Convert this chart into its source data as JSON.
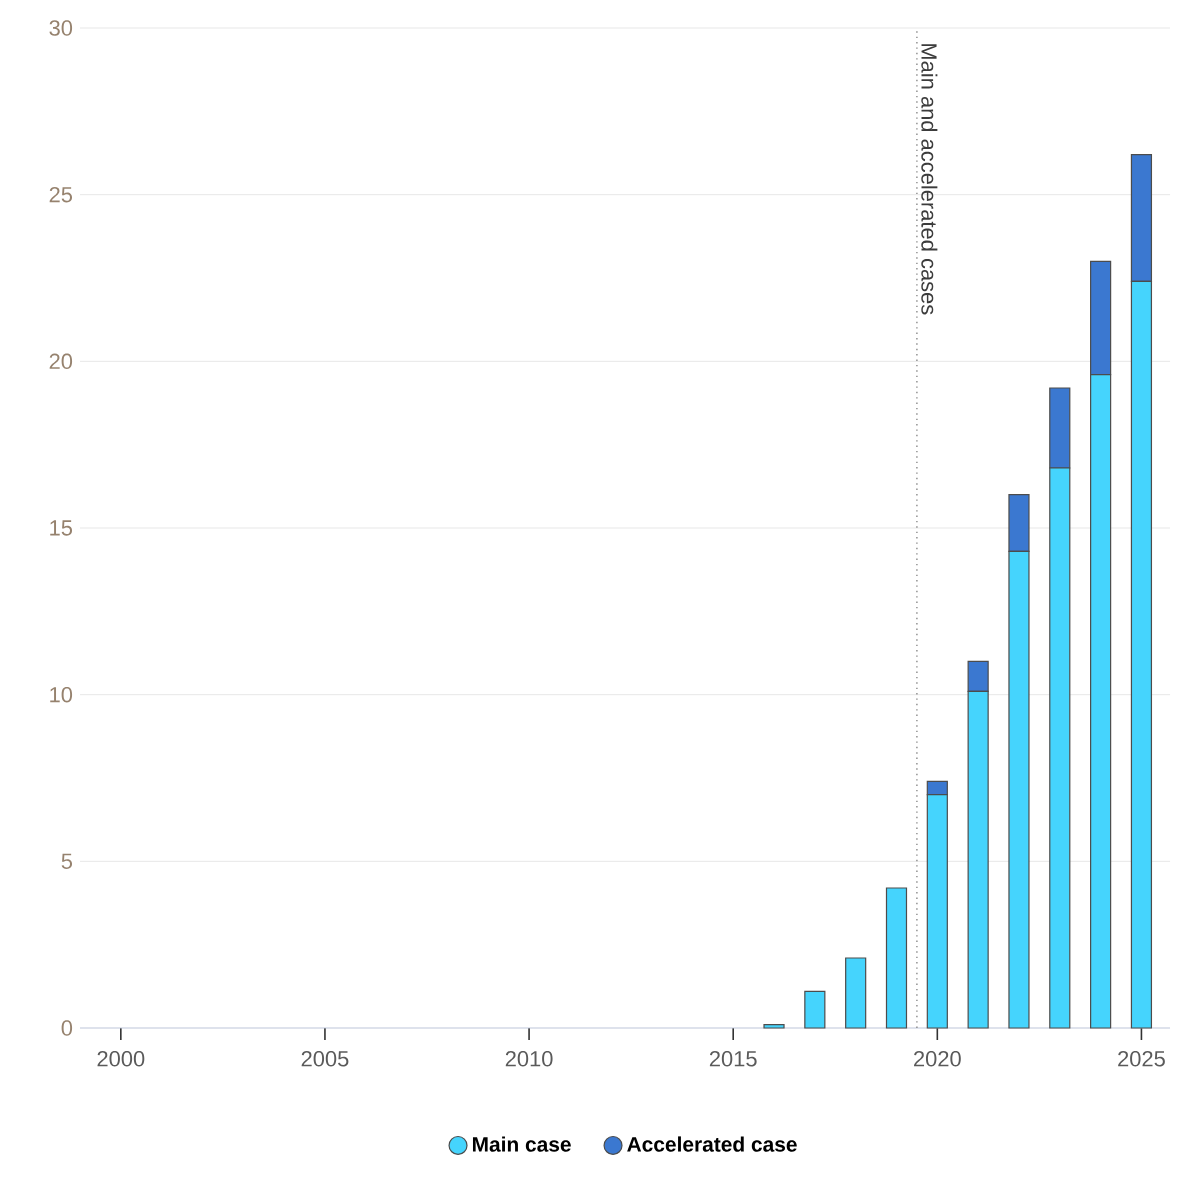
{
  "chart_data": {
    "type": "bar",
    "stacked": true,
    "x": [
      2016,
      2017,
      2018,
      2019,
      2020,
      2021,
      2022,
      2023,
      2024,
      2025
    ],
    "series": [
      {
        "name": "Main case",
        "color": "#45d4fd",
        "values": [
          0.1,
          1.1,
          2.1,
          4.2,
          7.0,
          10.1,
          14.3,
          16.8,
          19.6,
          22.4
        ]
      },
      {
        "name": "Accelerated case",
        "color": "#3b78d0",
        "values": [
          null,
          null,
          null,
          null,
          0.4,
          0.9,
          1.7,
          2.4,
          3.4,
          3.8
        ]
      }
    ],
    "xlim": [
      1999,
      2025.7
    ],
    "xticks": [
      2000,
      2005,
      2010,
      2015,
      2020,
      2025
    ],
    "ylim": [
      0,
      30
    ],
    "yticks": [
      0,
      5,
      10,
      15,
      20,
      25,
      30
    ],
    "grid": "y",
    "legend": "bottom",
    "marker": "circle",
    "ref_lines": [
      {
        "axis": "x",
        "value": 2019.5,
        "label": "Main and accelerated cases",
        "line_style": "dotted",
        "color": "#888888"
      }
    ]
  }
}
